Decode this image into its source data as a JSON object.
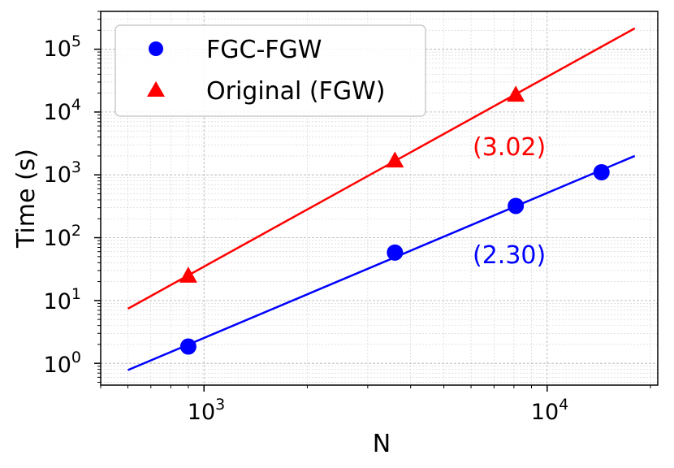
{
  "chart_data": {
    "type": "scatter",
    "xlabel": "N",
    "ylabel": "Time (s)",
    "xscale": "log",
    "yscale": "log",
    "xlim": [
      500,
      21000
    ],
    "ylim": [
      0.45,
      400000
    ],
    "grid": true,
    "legend_position": "top-left",
    "x_ticks": [
      {
        "base": "10",
        "exp": "3",
        "value": 1000
      },
      {
        "base": "10",
        "exp": "4",
        "value": 10000
      }
    ],
    "y_ticks": [
      {
        "base": "10",
        "exp": "0",
        "value": 1
      },
      {
        "base": "10",
        "exp": "1",
        "value": 10
      },
      {
        "base": "10",
        "exp": "2",
        "value": 100
      },
      {
        "base": "10",
        "exp": "3",
        "value": 1000
      },
      {
        "base": "10",
        "exp": "4",
        "value": 10000
      },
      {
        "base": "10",
        "exp": "5",
        "value": 100000
      }
    ],
    "series": [
      {
        "name": "FGC-FGW",
        "color": "#0000ff",
        "marker": "circle",
        "x": [
          900,
          3600,
          8100,
          14400
        ],
        "y": [
          1.85,
          58,
          320,
          1100
        ],
        "fit": {
          "x": [
            600,
            18000
          ],
          "y": [
            0.78,
            2000
          ]
        },
        "annotation": "(2.30)"
      },
      {
        "name": "Original (FGW)",
        "color": "#ff0000",
        "marker": "triangle",
        "x": [
          900,
          3600,
          8100
        ],
        "y": [
          25,
          1700,
          19000
        ],
        "fit": {
          "x": [
            600,
            18000
          ],
          "y": [
            7.4,
            215000
          ]
        },
        "annotation": "(3.02)"
      }
    ]
  }
}
